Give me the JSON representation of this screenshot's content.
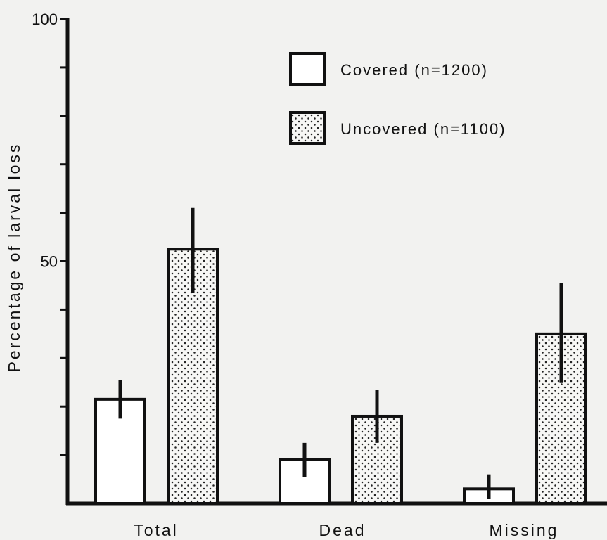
{
  "chart_data": {
    "type": "bar",
    "title": "",
    "xlabel": "",
    "ylabel": "Percentage of larval loss",
    "ylim": [
      0,
      100
    ],
    "yticks_labeled": [
      "50",
      "100"
    ],
    "yticks_minor_step": 10,
    "grid": false,
    "legend_placement": "top-right",
    "categories": [
      "Total",
      "Dead",
      "Missing"
    ],
    "series": [
      {
        "name": "Covered  (n=1200)",
        "fill": "white",
        "values": [
          21.5,
          9,
          3
        ],
        "error_low": [
          17.5,
          5.5,
          1
        ],
        "error_high": [
          25.5,
          12.5,
          6
        ]
      },
      {
        "name": "Uncovered  (n=1100)",
        "fill": "stippled",
        "values": [
          52.5,
          18,
          35
        ],
        "error_low": [
          43.5,
          12.5,
          25
        ],
        "error_high": [
          61,
          23.5,
          45.5
        ]
      }
    ],
    "colors": {
      "stroke": "#111111",
      "stipple_bg": "#f7f7f5",
      "stipple_dot": "#222222",
      "background": "#f2f2f0"
    }
  }
}
